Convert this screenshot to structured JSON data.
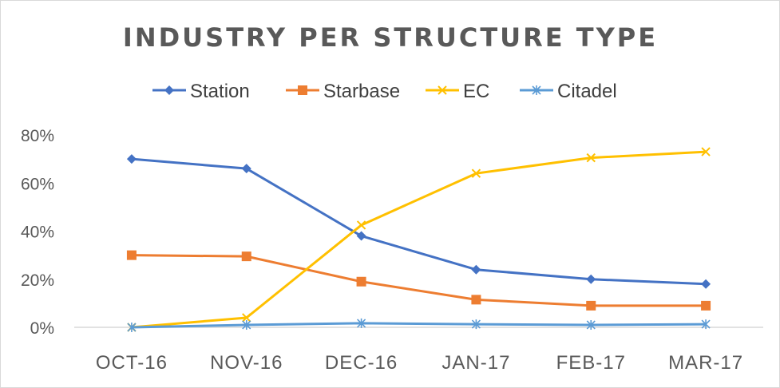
{
  "chart_data": {
    "type": "line",
    "title": "INDUSTRY PER STRUCTURE TYPE",
    "xlabel": "",
    "ylabel": "",
    "categories": [
      "OCT-16",
      "NOV-16",
      "DEC-16",
      "JAN-17",
      "FEB-17",
      "MAR-17"
    ],
    "ylim": [
      0,
      80
    ],
    "yticks": [
      0,
      20,
      40,
      60,
      80
    ],
    "ytick_labels": [
      "0%",
      "20%",
      "40%",
      "60%",
      "80%"
    ],
    "grid": false,
    "legend_position": "top",
    "series": [
      {
        "name": "Station",
        "values": [
          70,
          66,
          38,
          24,
          20,
          18
        ],
        "color": "#4472c4",
        "marker": "diamond"
      },
      {
        "name": "Starbase",
        "values": [
          30,
          29.5,
          19,
          11.5,
          9,
          9
        ],
        "color": "#ed7d31",
        "marker": "square"
      },
      {
        "name": "EC",
        "values": [
          0,
          4,
          42.5,
          64,
          70.5,
          73
        ],
        "color": "#ffc000",
        "marker": "x"
      },
      {
        "name": "Citadel",
        "values": [
          0,
          1,
          1.7,
          1.3,
          1,
          1.3
        ],
        "color": "#5b9bd5",
        "marker": "star"
      }
    ]
  }
}
